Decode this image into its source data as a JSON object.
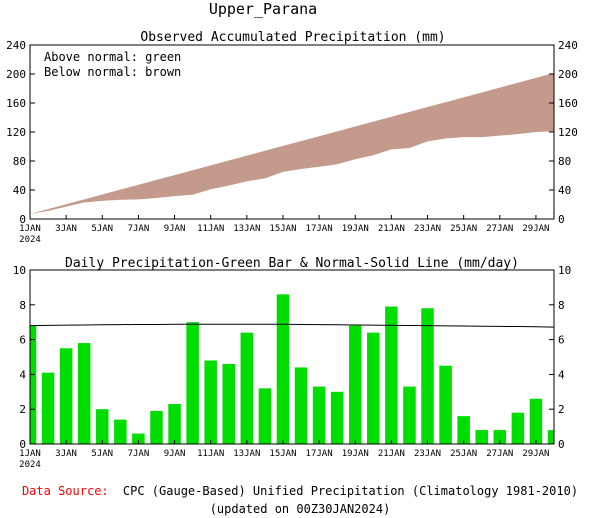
{
  "page_title": "Upper_Parana",
  "chart_data": [
    {
      "type": "area",
      "title": "Observed Accumulated Precipitation (mm)",
      "legend": [
        "Above normal: green",
        "Below normal: brown"
      ],
      "legend_position": "top-left",
      "colors": {
        "above": "#00dd00",
        "below": "#c49a8c",
        "frame": "#000000"
      },
      "ylim": [
        0,
        240
      ],
      "yticks": [
        "0",
        "40",
        "80",
        "120",
        "160",
        "200",
        "240"
      ],
      "xlim": [
        1,
        30
      ],
      "x_tick_days": [
        1,
        3,
        5,
        7,
        9,
        11,
        13,
        15,
        17,
        19,
        21,
        23,
        25,
        27,
        29
      ],
      "x_tick_labels": [
        "1JAN",
        "3JAN",
        "5JAN",
        "7JAN",
        "9JAN",
        "11JAN",
        "13JAN",
        "15JAN",
        "17JAN",
        "19JAN",
        "21JAN",
        "23JAN",
        "25JAN",
        "27JAN",
        "29JAN"
      ],
      "x_year_label": "2024",
      "x": [
        1,
        2,
        3,
        4,
        5,
        6,
        7,
        8,
        9,
        10,
        11,
        12,
        13,
        14,
        15,
        16,
        17,
        18,
        19,
        20,
        21,
        22,
        23,
        24,
        25,
        26,
        27,
        28,
        29,
        30
      ],
      "series": [
        {
          "name": "observed",
          "values": [
            7.0,
            11.2,
            17.0,
            23.0,
            25.0,
            26.5,
            27.0,
            29.0,
            31.5,
            33.5,
            41.0,
            46.0,
            52.0,
            56.0,
            65.0,
            69.0,
            72.0,
            75.5,
            82.5,
            88.0,
            96.0,
            98.0,
            107.0,
            111.0,
            113.0,
            113.0,
            115.0,
            117.0,
            120.0,
            121.0
          ]
        },
        {
          "name": "normal",
          "values": [
            7.0,
            13.7,
            20.4,
            27.1,
            33.8,
            40.5,
            47.2,
            53.9,
            60.6,
            67.3,
            74.0,
            80.7,
            87.4,
            94.1,
            100.8,
            107.5,
            114.2,
            120.9,
            127.6,
            134.3,
            141.0,
            147.7,
            154.4,
            161.1,
            167.8,
            174.5,
            181.2,
            187.9,
            194.6,
            201.3
          ]
        }
      ]
    },
    {
      "type": "bar",
      "title": "Daily Precipitation-Green Bar & Normal-Solid Line (mm/day)",
      "colors": {
        "bar": "#00dd00",
        "line": "#000000"
      },
      "ylim": [
        0,
        10
      ],
      "yticks": [
        "0",
        "2",
        "4",
        "6",
        "8",
        "10"
      ],
      "xlim": [
        1,
        30
      ],
      "x_tick_days": [
        1,
        3,
        5,
        7,
        9,
        11,
        13,
        15,
        17,
        19,
        21,
        23,
        25,
        27,
        29
      ],
      "x_tick_labels": [
        "1JAN",
        "3JAN",
        "5JAN",
        "7JAN",
        "9JAN",
        "11JAN",
        "13JAN",
        "15JAN",
        "17JAN",
        "19JAN",
        "21JAN",
        "23JAN",
        "25JAN",
        "27JAN",
        "29JAN"
      ],
      "x_year_label": "2024",
      "x": [
        1,
        2,
        3,
        4,
        5,
        6,
        7,
        8,
        9,
        10,
        11,
        12,
        13,
        14,
        15,
        16,
        17,
        18,
        19,
        20,
        21,
        22,
        23,
        24,
        25,
        26,
        27,
        28,
        29,
        30
      ],
      "series": [
        {
          "name": "daily",
          "values": [
            6.8,
            4.1,
            5.5,
            5.8,
            2.0,
            1.4,
            0.6,
            1.9,
            2.3,
            7.0,
            4.8,
            4.6,
            6.4,
            3.2,
            8.6,
            4.4,
            3.3,
            3.0,
            6.8,
            6.4,
            7.9,
            3.3,
            7.8,
            4.5,
            1.6,
            0.8,
            0.8,
            1.8,
            2.6,
            0.8
          ]
        },
        {
          "name": "normal",
          "values": [
            6.8,
            6.82,
            6.83,
            6.84,
            6.85,
            6.86,
            6.87,
            6.87,
            6.88,
            6.88,
            6.88,
            6.88,
            6.88,
            6.88,
            6.88,
            6.87,
            6.86,
            6.85,
            6.84,
            6.83,
            6.82,
            6.81,
            6.8,
            6.79,
            6.78,
            6.77,
            6.76,
            6.75,
            6.74,
            6.72
          ]
        }
      ]
    }
  ],
  "footer": {
    "source_label": "Data Source:",
    "source_text": "CPC (Gauge-Based) Unified Precipitation (Climatology 1981-2010)",
    "updated": "(updated on 00Z30JAN2024)",
    "source_color": "#ff0000"
  }
}
